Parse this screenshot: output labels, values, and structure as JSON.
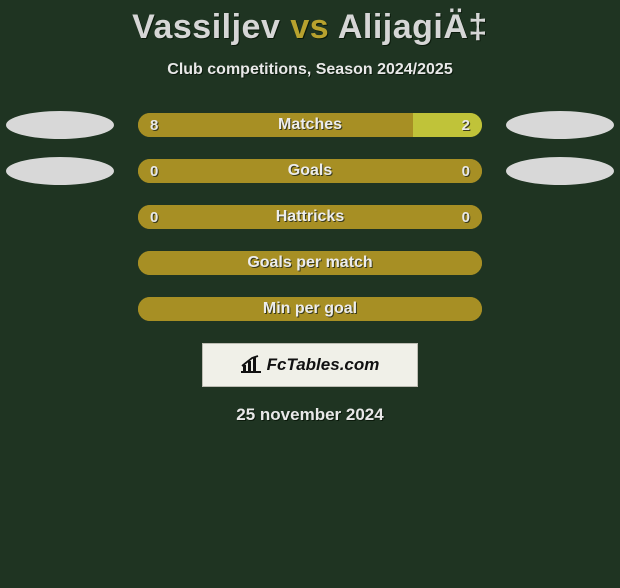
{
  "title": {
    "left_name": "Vassiljev",
    "vs": "vs",
    "right_name": "AlijagiÄ‡",
    "accent_color": "#b8a22e",
    "text_color": "#d6d6d6"
  },
  "subtitle": "Club competitions, Season 2024/2025",
  "colors": {
    "background": "#1f3422",
    "bar_left": "#a78f24",
    "bar_right": "#c0c339",
    "ellipse": "#d8d8d8",
    "text": "#e8e8e8"
  },
  "rows": [
    {
      "label": "Matches",
      "left": "8",
      "right": "2",
      "left_pct": 80,
      "right_pct": 20,
      "show_left_ellipse": true,
      "show_right_ellipse": true
    },
    {
      "label": "Goals",
      "left": "0",
      "right": "0",
      "left_pct": 100,
      "right_pct": 0,
      "show_left_ellipse": true,
      "show_right_ellipse": true
    },
    {
      "label": "Hattricks",
      "left": "0",
      "right": "0",
      "left_pct": 100,
      "right_pct": 0,
      "show_left_ellipse": false,
      "show_right_ellipse": false
    },
    {
      "label": "Goals per match",
      "left": "",
      "right": "",
      "left_pct": 100,
      "right_pct": 0,
      "show_left_ellipse": false,
      "show_right_ellipse": false
    },
    {
      "label": "Min per goal",
      "left": "",
      "right": "",
      "left_pct": 100,
      "right_pct": 0,
      "show_left_ellipse": false,
      "show_right_ellipse": false
    }
  ],
  "badge": {
    "icon": "chart-icon",
    "text": "FcTables.com"
  },
  "date": "25 november 2024"
}
